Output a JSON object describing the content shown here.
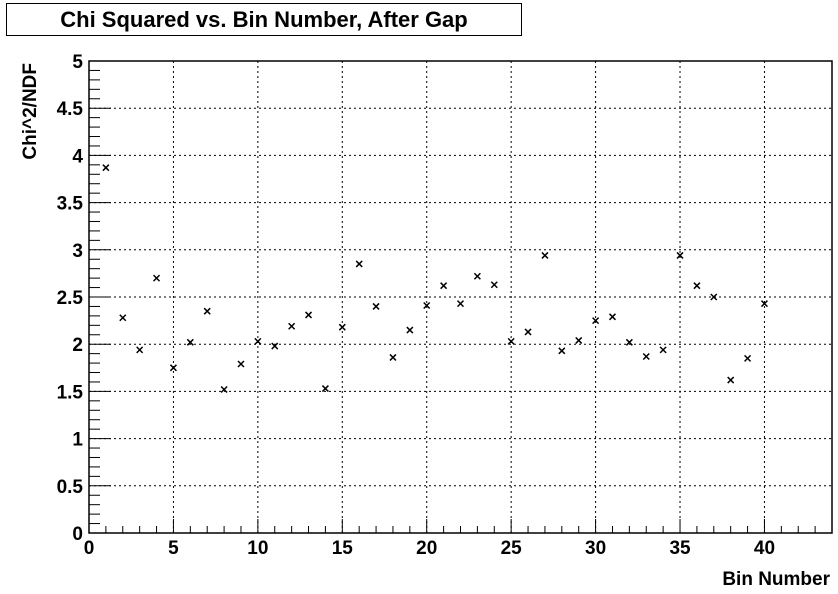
{
  "chart_data": {
    "type": "scatter",
    "title": "Chi Squared vs. Bin Number, After Gap",
    "xlabel": "Bin Number",
    "ylabel": "Chi^2/NDF",
    "xlim": [
      0,
      44
    ],
    "ylim": [
      0,
      5
    ],
    "grid": true,
    "legend": "none",
    "marker": "x",
    "marker_color": "#000000",
    "x_ticks": [
      0,
      5,
      10,
      15,
      20,
      25,
      30,
      35,
      40
    ],
    "x_tick_labels": [
      "0",
      "5",
      "10",
      "15",
      "20",
      "25",
      "30",
      "35",
      "40"
    ],
    "y_ticks": [
      0,
      0.5,
      1,
      1.5,
      2,
      2.5,
      3,
      3.5,
      4,
      4.5,
      5
    ],
    "y_tick_labels": [
      "0",
      "0.5",
      "1",
      "1.5",
      "2",
      "2.5",
      "3",
      "3.5",
      "4",
      "4.5",
      "5"
    ],
    "x": [
      1,
      2,
      3,
      4,
      5,
      6,
      7,
      8,
      9,
      10,
      11,
      12,
      13,
      14,
      15,
      16,
      17,
      18,
      19,
      20,
      21,
      22,
      23,
      24,
      25,
      26,
      27,
      28,
      29,
      30,
      31,
      32,
      33,
      34,
      35,
      36,
      37,
      38,
      39,
      40
    ],
    "y": [
      3.87,
      2.28,
      1.94,
      2.7,
      1.75,
      2.02,
      2.35,
      1.52,
      1.79,
      2.03,
      1.98,
      2.19,
      2.31,
      1.53,
      2.18,
      2.85,
      2.4,
      1.86,
      2.15,
      2.41,
      2.62,
      2.43,
      2.72,
      2.63,
      2.03,
      2.13,
      2.94,
      1.93,
      2.04,
      2.25,
      2.29,
      2.02,
      1.87,
      1.94,
      2.94,
      2.62,
      2.5,
      1.62,
      1.85,
      2.43
    ]
  }
}
